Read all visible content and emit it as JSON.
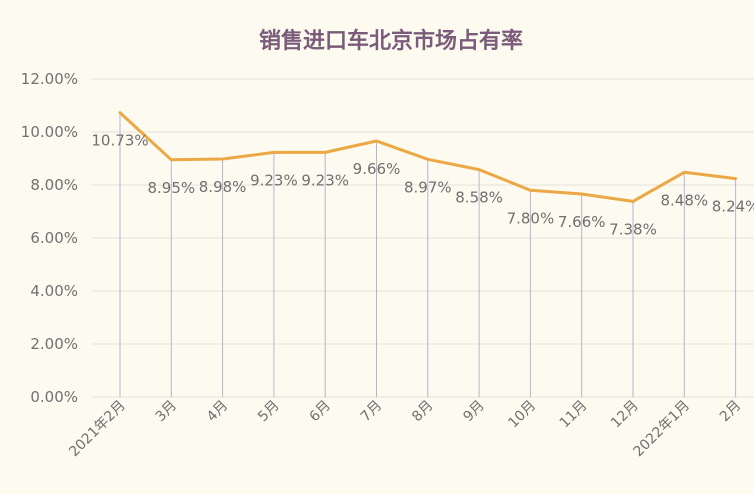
{
  "chart_data": {
    "type": "line",
    "title": "销售进口车北京市场占有率",
    "categories": [
      "2021年2月",
      "3月",
      "4月",
      "5月",
      "6月",
      "7月",
      "8月",
      "9月",
      "10月",
      "11月",
      "12月",
      "2022年1月",
      "2月"
    ],
    "series": [
      {
        "values": [
          10.73,
          8.95,
          8.98,
          9.23,
          9.23,
          9.66,
          8.97,
          8.58,
          7.8,
          7.66,
          7.38,
          8.48,
          8.24
        ]
      }
    ],
    "data_labels": [
      "10.73%",
      "8.95%",
      "8.98%",
      "9.23%",
      "9.23%",
      "9.66%",
      "8.97%",
      "8.58%",
      "7.80%",
      "7.66%",
      "7.38%",
      "8.48%",
      "8.24%"
    ],
    "y_tick_labels": [
      "0.00%",
      "2.00%",
      "4.00%",
      "6.00%",
      "8.00%",
      "10.00%",
      "12.00%"
    ],
    "ylim": [
      0,
      12
    ],
    "grid": true,
    "colors": {
      "line": "#eba845",
      "drop_line": "#b9b3cf",
      "grid": "#e6e3da",
      "title": "#7a5c7a",
      "text": "#707070"
    }
  }
}
